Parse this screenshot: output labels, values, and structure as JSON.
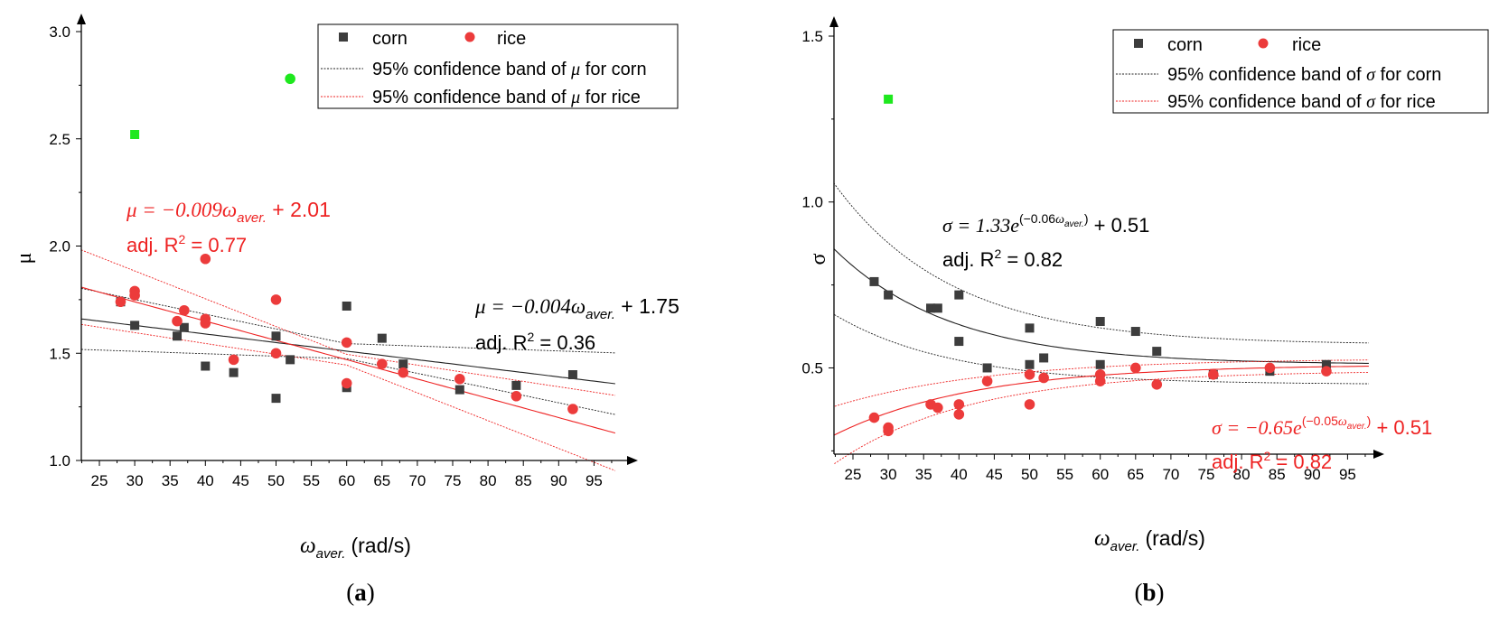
{
  "colors": {
    "corn": "#3d3d3d",
    "rice": "#ec3b3b",
    "outlier": "#1ee81e",
    "fit_corn": "#222222",
    "fit_rice": "#ee2222",
    "axis": "#000000"
  },
  "chart_data": [
    {
      "type": "scatter",
      "panel_label": "(a)",
      "panel_letter": "a",
      "xlabel_symbol": "ω",
      "xlabel_sub": "aver.",
      "xlabel_unit": "(rad/s)",
      "ylabel": "μ",
      "xlim": [
        22,
        98
      ],
      "ylim": [
        1.0,
        3.1
      ],
      "x_ticks": [
        25,
        30,
        35,
        40,
        45,
        50,
        55,
        60,
        65,
        70,
        75,
        80,
        85,
        90,
        95
      ],
      "y_ticks": [
        1.0,
        1.5,
        2.0,
        2.5,
        3.0
      ],
      "y_tick_labels": [
        "1.0",
        "1.5",
        "2.0",
        "2.5",
        "3.0"
      ],
      "legend": {
        "corn": "corn",
        "rice": "rice",
        "band_corn_pre": "95% confidence band of ",
        "band_corn_sym": "μ",
        "band_corn_post": " for corn",
        "band_rice_pre": "95% confidence band of ",
        "band_rice_sym": "μ",
        "band_rice_post": " for rice"
      },
      "series": [
        {
          "name": "corn",
          "marker": "square",
          "points": [
            [
              28,
              1.74
            ],
            [
              30,
              1.63
            ],
            [
              36,
              1.58
            ],
            [
              37,
              1.62
            ],
            [
              40,
              1.44
            ],
            [
              44,
              1.41
            ],
            [
              50,
              1.58
            ],
            [
              50,
              1.29
            ],
            [
              52,
              1.47
            ],
            [
              60,
              1.72
            ],
            [
              60,
              1.34
            ],
            [
              65,
              1.57
            ],
            [
              68,
              1.45
            ],
            [
              76,
              1.33
            ],
            [
              84,
              1.35
            ],
            [
              92,
              1.4
            ]
          ]
        },
        {
          "name": "rice",
          "marker": "circle",
          "points": [
            [
              28,
              1.74
            ],
            [
              30,
              1.79
            ],
            [
              30,
              1.77
            ],
            [
              36,
              1.65
            ],
            [
              37,
              1.7
            ],
            [
              40,
              1.66
            ],
            [
              40,
              1.64
            ],
            [
              40,
              1.94
            ],
            [
              44,
              1.47
            ],
            [
              50,
              1.75
            ],
            [
              50,
              1.5
            ],
            [
              60,
              1.55
            ],
            [
              60,
              1.36
            ],
            [
              65,
              1.45
            ],
            [
              68,
              1.41
            ],
            [
              76,
              1.38
            ],
            [
              84,
              1.3
            ],
            [
              92,
              1.24
            ]
          ]
        }
      ],
      "outliers": [
        {
          "marker": "square",
          "x": 30,
          "y": 2.52
        },
        {
          "marker": "circle",
          "x": 52,
          "y": 2.78
        }
      ],
      "fits": [
        {
          "name": "corn",
          "model": "linear",
          "a": -0.004,
          "b": 1.75,
          "band_mid": 1.545,
          "band_half_mid": 0.035,
          "band_growth": 0.0022
        },
        {
          "name": "rice",
          "model": "linear",
          "a": -0.009,
          "b": 2.01,
          "band_mid": 1.475,
          "band_half_mid": 0.025,
          "band_growth": 0.0022
        }
      ],
      "annotations": {
        "rice_eq": {
          "prefix": "μ = −0.009",
          "omega": "ω",
          "sub": "aver.",
          "suffix": " + 2.01"
        },
        "rice_r2": {
          "prefix": "adj. R",
          "sup": "2",
          "suffix": " = 0.77"
        },
        "corn_eq": {
          "prefix": "μ = −0.004",
          "omega": "ω",
          "sub": "aver.",
          "suffix": " + 1.75"
        },
        "corn_r2": {
          "prefix": "adj. R",
          "sup": "2",
          "suffix": " = 0.36"
        }
      }
    },
    {
      "type": "scatter",
      "panel_label": "(b)",
      "panel_letter": "b",
      "xlabel_symbol": "ω",
      "xlabel_sub": "aver.",
      "xlabel_unit": "(rad/s)",
      "ylabel": "σ",
      "xlim": [
        22,
        98
      ],
      "ylim": [
        0.24,
        1.6
      ],
      "x_ticks": [
        25,
        30,
        35,
        40,
        45,
        50,
        55,
        60,
        65,
        70,
        75,
        80,
        85,
        90,
        95
      ],
      "y_ticks": [
        0.5,
        1.0,
        1.5
      ],
      "y_tick_labels": [
        "0.5",
        "1.0",
        "1.5"
      ],
      "legend": {
        "corn": "corn",
        "rice": "rice",
        "band_corn_pre": "95% confidence band of ",
        "band_corn_sym": "σ",
        "band_corn_post": " for corn",
        "band_rice_pre": "95% confidence band of ",
        "band_rice_sym": "σ",
        "band_rice_post": " for rice"
      },
      "series": [
        {
          "name": "corn",
          "marker": "square",
          "points": [
            [
              28,
              0.76
            ],
            [
              30,
              0.72
            ],
            [
              36,
              0.68
            ],
            [
              37,
              0.68
            ],
            [
              40,
              0.72
            ],
            [
              40,
              0.58
            ],
            [
              44,
              0.5
            ],
            [
              50,
              0.62
            ],
            [
              50,
              0.51
            ],
            [
              52,
              0.53
            ],
            [
              60,
              0.64
            ],
            [
              60,
              0.51
            ],
            [
              65,
              0.61
            ],
            [
              68,
              0.55
            ],
            [
              76,
              0.48
            ],
            [
              84,
              0.49
            ],
            [
              92,
              0.51
            ]
          ]
        },
        {
          "name": "rice",
          "marker": "circle",
          "points": [
            [
              28,
              0.35
            ],
            [
              30,
              0.32
            ],
            [
              30,
              0.31
            ],
            [
              36,
              0.39
            ],
            [
              37,
              0.38
            ],
            [
              40,
              0.39
            ],
            [
              40,
              0.36
            ],
            [
              44,
              0.46
            ],
            [
              50,
              0.48
            ],
            [
              50,
              0.39
            ],
            [
              52,
              0.47
            ],
            [
              60,
              0.48
            ],
            [
              60,
              0.46
            ],
            [
              65,
              0.5
            ],
            [
              68,
              0.45
            ],
            [
              76,
              0.48
            ],
            [
              84,
              0.5
            ],
            [
              92,
              0.49
            ]
          ]
        }
      ],
      "outliers": [
        {
          "marker": "square",
          "x": 30,
          "y": 1.31
        }
      ],
      "fits": [
        {
          "name": "corn",
          "model": "exp",
          "A": 1.33,
          "k": 0.06,
          "C": 0.51,
          "band_half": 0.06,
          "band_amp": 0.14,
          "band_decay": 0.06
        },
        {
          "name": "rice",
          "model": "exp",
          "A": -0.65,
          "k": 0.05,
          "C": 0.51,
          "band_half": 0.018,
          "band_amp": 0.07,
          "band_decay": 0.06
        }
      ],
      "annotations": {
        "corn_eq": {
          "prefix": "σ = 1.33e",
          "exp_open": "(−0.06",
          "omega": "ω",
          "sub": "aver.",
          "exp_close": ")",
          "suffix": " + 0.51"
        },
        "corn_r2": {
          "prefix": "adj. R",
          "sup": "2",
          "suffix": " = 0.82"
        },
        "rice_eq": {
          "prefix": "σ = −0.65e",
          "exp_open": "(−0.05",
          "omega": "ω",
          "sub": "aver.",
          "exp_close": ")",
          "suffix": " + 0.51"
        },
        "rice_r2": {
          "prefix": "adj. R",
          "sup": "2",
          "suffix": " = 0.82"
        }
      }
    }
  ]
}
